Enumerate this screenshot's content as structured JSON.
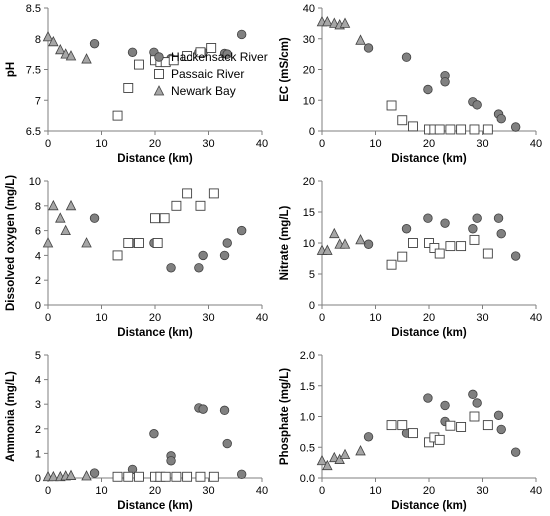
{
  "colors": {
    "hackensack_fill": "#808080",
    "passaic_fill": "#ffffff",
    "newark_fill": "#a6a6a6",
    "stroke": "#404040",
    "axis": "#7f7f7f"
  },
  "legend": {
    "hackensack": "Hackensack River",
    "passaic": "Passaic River",
    "newark": "Newark Bay"
  },
  "chart_data": [
    {
      "type": "scatter",
      "ylabel": "pH",
      "xlabel": "Distance (km)",
      "xlim": [
        0,
        40
      ],
      "ylim": [
        6.5,
        8.5
      ],
      "xticks": [
        0,
        10,
        20,
        30,
        40
      ],
      "yticks": [
        "6.5",
        "7",
        "7.5",
        "8",
        "8.5"
      ],
      "series": [
        {
          "name": "Hackensack River",
          "marker": "circle",
          "x": [
            8.7,
            15.8,
            19.8,
            23,
            28.2,
            29,
            33,
            33.5,
            36.2
          ],
          "y": [
            7.92,
            7.78,
            7.78,
            7.68,
            7.78,
            7.78,
            7.76,
            7.75,
            8.07
          ]
        },
        {
          "name": "Passaic River",
          "marker": "square",
          "x": [
            13,
            15,
            17,
            20,
            21,
            22,
            23.5,
            26,
            28.5,
            30.5
          ],
          "y": [
            6.75,
            7.2,
            7.58,
            7.65,
            7.62,
            7.62,
            7.65,
            7.72,
            7.78,
            7.85
          ]
        },
        {
          "name": "Newark Bay",
          "marker": "triangle",
          "x": [
            0,
            1,
            2.3,
            3.3,
            4.3,
            7.2
          ],
          "y": [
            8.03,
            7.95,
            7.82,
            7.75,
            7.72,
            7.67
          ]
        }
      ]
    },
    {
      "type": "scatter",
      "ylabel": "EC (mS/cm)",
      "xlabel": "Distance (km)",
      "xlim": [
        0,
        40
      ],
      "ylim": [
        0,
        40
      ],
      "xticks": [
        0,
        10,
        20,
        30,
        40
      ],
      "yticks": [
        "0",
        "10",
        "20",
        "30",
        "40"
      ],
      "series": [
        {
          "name": "Hackensack River",
          "marker": "circle",
          "x": [
            8.7,
            15.8,
            19.8,
            23,
            23,
            28.2,
            29,
            33,
            33.5,
            36.2
          ],
          "y": [
            27,
            24,
            13.5,
            18,
            16,
            9.5,
            8.5,
            5.5,
            4,
            1.3
          ]
        },
        {
          "name": "Passaic River",
          "marker": "square",
          "x": [
            13,
            15,
            17,
            20,
            21,
            22,
            24,
            26,
            28.5,
            31
          ],
          "y": [
            8.3,
            3.5,
            1.5,
            0.5,
            0.5,
            0.5,
            0.5,
            0.5,
            0.5,
            0.5
          ]
        },
        {
          "name": "Newark Bay",
          "marker": "triangle",
          "x": [
            0,
            1,
            2.3,
            3.3,
            4.3,
            7.2
          ],
          "y": [
            35.5,
            35.5,
            35,
            34.5,
            35,
            29.5
          ]
        }
      ]
    },
    {
      "type": "scatter",
      "ylabel": "Dissolved oxygen (mg/L)",
      "xlabel": "Distance (km)",
      "xlim": [
        0,
        40
      ],
      "ylim": [
        0,
        10
      ],
      "xticks": [
        0,
        10,
        20,
        30,
        40
      ],
      "yticks": [
        "0",
        "2",
        "4",
        "6",
        "8",
        "10"
      ],
      "series": [
        {
          "name": "Hackensack River",
          "marker": "circle",
          "x": [
            8.7,
            15.8,
            19.8,
            23,
            28.2,
            29,
            33,
            33.5,
            36.2
          ],
          "y": [
            7,
            5,
            5,
            3,
            3,
            4,
            4,
            5,
            6
          ]
        },
        {
          "name": "Passaic River",
          "marker": "square",
          "x": [
            13,
            15,
            17,
            20,
            20.5,
            21.8,
            24,
            26,
            28.5,
            31
          ],
          "y": [
            4,
            5,
            5,
            7,
            5,
            7,
            8,
            9,
            8,
            9
          ]
        },
        {
          "name": "Newark Bay",
          "marker": "triangle",
          "x": [
            0,
            1,
            2.3,
            3.3,
            4.3,
            7.2
          ],
          "y": [
            5,
            8,
            7,
            6,
            8,
            5
          ]
        }
      ]
    },
    {
      "type": "scatter",
      "ylabel": "Nitrate (mg/L)",
      "xlabel": "Distance (km)",
      "xlim": [
        0,
        40
      ],
      "ylim": [
        0,
        20
      ],
      "xticks": [
        0,
        10,
        20,
        30,
        40
      ],
      "yticks": [
        "0",
        "5",
        "10",
        "15",
        "20"
      ],
      "series": [
        {
          "name": "Hackensack River",
          "marker": "circle",
          "x": [
            8.7,
            15.8,
            19.8,
            23,
            28.2,
            29,
            33,
            33.5,
            36.2
          ],
          "y": [
            9.8,
            12.3,
            14,
            13.2,
            12.3,
            14,
            14,
            11.5,
            7.9
          ]
        },
        {
          "name": "Passaic River",
          "marker": "square",
          "x": [
            13,
            15,
            17,
            20,
            21,
            22,
            24,
            26,
            28.5,
            31
          ],
          "y": [
            6.5,
            7.8,
            10,
            10,
            9.2,
            8.3,
            9.5,
            9.5,
            10.5,
            8.3
          ]
        },
        {
          "name": "Newark Bay",
          "marker": "triangle",
          "x": [
            0,
            1,
            2.3,
            3.3,
            4.3,
            7.2
          ],
          "y": [
            8.8,
            8.8,
            11.5,
            9.8,
            9.8,
            10.5
          ]
        }
      ]
    },
    {
      "type": "scatter",
      "ylabel": "Ammonia (mg/L)",
      "xlabel": "Distance (km)",
      "xlim": [
        0,
        40
      ],
      "ylim": [
        0,
        5
      ],
      "xticks": [
        0,
        10,
        20,
        30,
        40
      ],
      "yticks": [
        "0",
        "1",
        "2",
        "3",
        "4",
        "5"
      ],
      "series": [
        {
          "name": "Hackensack River",
          "marker": "circle",
          "x": [
            8.7,
            15.8,
            19.8,
            23,
            23,
            28.2,
            29,
            33,
            33.5,
            36.2
          ],
          "y": [
            0.2,
            0.35,
            1.8,
            0.9,
            0.7,
            2.85,
            2.8,
            2.75,
            1.4,
            0.15
          ]
        },
        {
          "name": "Passaic River",
          "marker": "square",
          "x": [
            13,
            15,
            17,
            20,
            21,
            22,
            24,
            26,
            28.5,
            31
          ],
          "y": [
            0.05,
            0.05,
            0.05,
            0.05,
            0.05,
            0.05,
            0.05,
            0.05,
            0.05,
            0.05
          ]
        },
        {
          "name": "Newark Bay",
          "marker": "triangle",
          "x": [
            0,
            1,
            2.3,
            3.3,
            4.3,
            7.2
          ],
          "y": [
            0.05,
            0.05,
            0.05,
            0.08,
            0.1,
            0.08
          ]
        }
      ]
    },
    {
      "type": "scatter",
      "ylabel": "Phosphate (mg/L)",
      "xlabel": "Distance (km)",
      "xlim": [
        0,
        40
      ],
      "ylim": [
        0,
        2
      ],
      "xticks": [
        0,
        10,
        20,
        30,
        40
      ],
      "yticks": [
        "0.0",
        "0.5",
        "1.0",
        "1.5",
        "2.0"
      ],
      "series": [
        {
          "name": "Hackensack River",
          "marker": "circle",
          "x": [
            8.7,
            15.8,
            19.8,
            23,
            23,
            28.2,
            29,
            33,
            33.5,
            36.2
          ],
          "y": [
            0.67,
            0.73,
            1.3,
            1.18,
            0.92,
            1.36,
            1.22,
            1.02,
            0.79,
            0.42
          ]
        },
        {
          "name": "Passaic River",
          "marker": "square",
          "x": [
            13,
            15,
            17,
            20,
            21,
            22,
            24,
            26,
            28.5,
            31
          ],
          "y": [
            0.86,
            0.86,
            0.73,
            0.58,
            0.66,
            0.62,
            0.85,
            0.83,
            1.0,
            0.86
          ]
        },
        {
          "name": "Newark Bay",
          "marker": "triangle",
          "x": [
            0,
            1,
            2.3,
            3.3,
            4.3,
            7.2
          ],
          "y": [
            0.28,
            0.2,
            0.33,
            0.3,
            0.38,
            0.44
          ]
        }
      ]
    }
  ]
}
